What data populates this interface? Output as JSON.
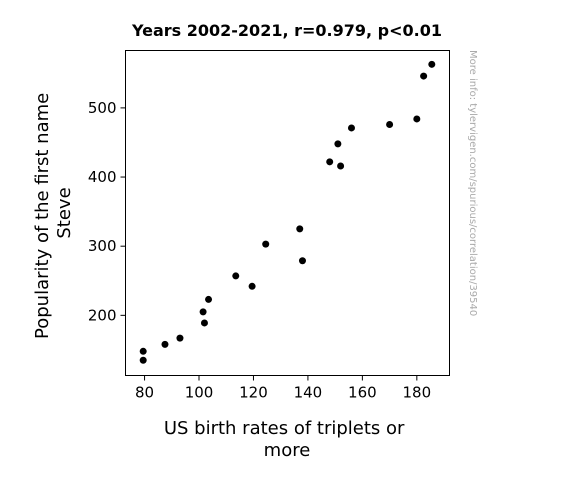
{
  "chart_data": {
    "type": "scatter",
    "title": "Years 2002-2021, r=0.979, p<0.01",
    "xlabel_lines": [
      "US birth rates of triplets or",
      "more"
    ],
    "ylabel_lines": [
      "Popularity of the first name",
      "Steve"
    ],
    "xlim": [
      73,
      192
    ],
    "ylim": [
      113,
      583
    ],
    "x_ticks": [
      80,
      100,
      120,
      140,
      160,
      180
    ],
    "y_ticks": [
      200,
      300,
      400,
      500
    ],
    "grid": false,
    "point_color": "#000000",
    "points": [
      {
        "x": 79.5,
        "y": 148
      },
      {
        "x": 79.5,
        "y": 135
      },
      {
        "x": 87.5,
        "y": 158
      },
      {
        "x": 93,
        "y": 167
      },
      {
        "x": 101.5,
        "y": 205
      },
      {
        "x": 102,
        "y": 189
      },
      {
        "x": 103.5,
        "y": 223
      },
      {
        "x": 113.5,
        "y": 257
      },
      {
        "x": 119.5,
        "y": 242
      },
      {
        "x": 124.5,
        "y": 303
      },
      {
        "x": 137,
        "y": 325
      },
      {
        "x": 138,
        "y": 279
      },
      {
        "x": 148,
        "y": 422
      },
      {
        "x": 151,
        "y": 448
      },
      {
        "x": 152,
        "y": 416
      },
      {
        "x": 156,
        "y": 471
      },
      {
        "x": 170,
        "y": 476
      },
      {
        "x": 180,
        "y": 484
      },
      {
        "x": 182.5,
        "y": 546
      },
      {
        "x": 185.5,
        "y": 563
      }
    ]
  },
  "watermark": "More info: tylervigen.com/spurious/correlation/39540"
}
